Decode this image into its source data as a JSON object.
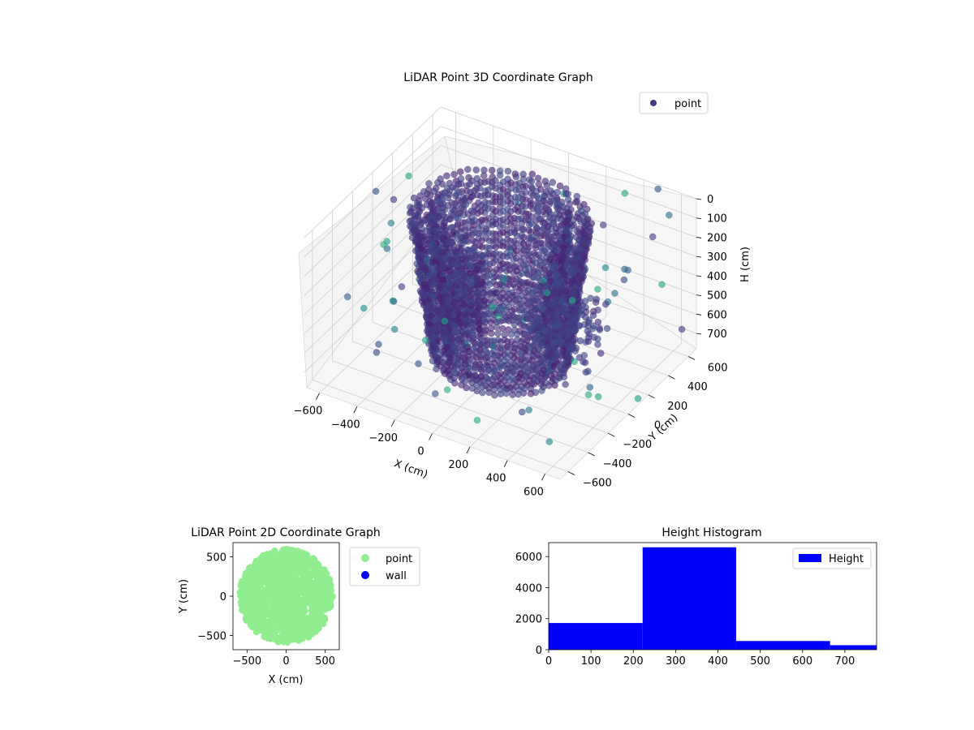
{
  "chart_data": [
    {
      "type": "scatter3d",
      "title": "LiDAR Point 3D Coordinate Graph",
      "xlabel": "X (cm)",
      "ylabel": "Y (cm)",
      "zlabel": "H (cm)",
      "xlim": [
        -680,
        680
      ],
      "ylim": [
        -680,
        680
      ],
      "zlim": [
        0,
        780
      ],
      "z_inverted": true,
      "grid": true,
      "legend": {
        "placement": "upper-right",
        "entries": [
          "point"
        ]
      },
      "x_ticks": [
        "−600",
        "−400",
        "−200",
        "0",
        "200",
        "400",
        "600"
      ],
      "y_ticks": [
        "−600",
        "−400",
        "−200",
        "0",
        "200",
        "400",
        "600"
      ],
      "z_ticks": [
        "0",
        "100",
        "200",
        "300",
        "400",
        "500",
        "600",
        "700"
      ],
      "series": [
        {
          "name": "point",
          "color": "#443983",
          "colormap": "viridis",
          "description_shape": "two stacked cylindrical shells of points around the origin plus scattered outliers",
          "ring_radii": [
            420,
            330
          ],
          "height_range": [
            0,
            720
          ]
        }
      ]
    },
    {
      "type": "scatter",
      "title": "LiDAR Point 2D Coordinate Graph",
      "xlabel": "X (cm)",
      "ylabel": "Y (cm)",
      "xlim": [
        -680,
        680
      ],
      "ylim": [
        -680,
        680
      ],
      "x_ticks": [
        "−500",
        "0",
        "500"
      ],
      "y_ticks": [
        "500",
        "0",
        "−500"
      ],
      "legend": {
        "placement": "outside-right",
        "entries": [
          "point",
          "wall"
        ]
      },
      "series": [
        {
          "name": "point",
          "color": "#90ee90",
          "points": "dense disc of radius ~620 cm centred at origin"
        },
        {
          "name": "wall",
          "color": "#0000ff",
          "points": []
        }
      ]
    },
    {
      "type": "bar",
      "title": "Height Histogram",
      "xlabel": "",
      "ylabel": "",
      "xlim": [
        0,
        775
      ],
      "ylim": [
        0,
        6900
      ],
      "x_ticks": [
        "0",
        "100",
        "200",
        "300",
        "400",
        "500",
        "600",
        "700"
      ],
      "y_ticks": [
        "0",
        "2000",
        "4000",
        "6000"
      ],
      "legend": {
        "placement": "upper-right",
        "entries": [
          "Height"
        ]
      },
      "series": [
        {
          "name": "Height",
          "color": "#0000ff",
          "bins": [
            {
              "x0": 0,
              "x1": 222,
              "value": 1720
            },
            {
              "x0": 222,
              "x1": 443,
              "value": 6600
            },
            {
              "x0": 443,
              "x1": 665,
              "value": 560
            },
            {
              "x0": 665,
              "x1": 775,
              "value": 290
            }
          ]
        }
      ]
    }
  ]
}
